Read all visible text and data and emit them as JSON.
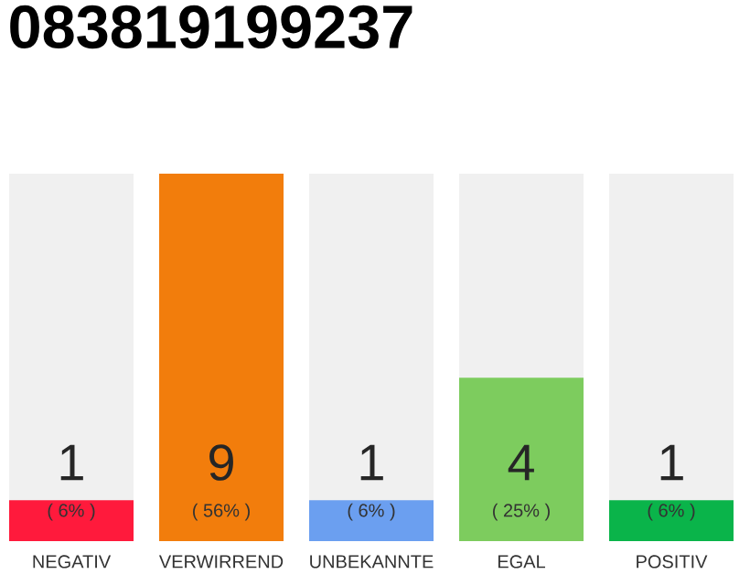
{
  "chart_data": {
    "type": "bar",
    "title": "083819199237",
    "categories": [
      "NEGATIV",
      "VERWIRREND",
      "UNBEKANNTE",
      "EGAL",
      "POSITIV"
    ],
    "values": [
      1,
      9,
      1,
      4,
      1
    ],
    "colors": [
      "#ff1a3c",
      "#f27d0c",
      "#6b9ff0",
      "#7dcc5e",
      "#0ab44a"
    ],
    "data_labels": true,
    "annotations": [
      "( 6% )",
      "( 56% )",
      "( 6% )",
      "( 25% )",
      "( 6% )"
    ]
  }
}
